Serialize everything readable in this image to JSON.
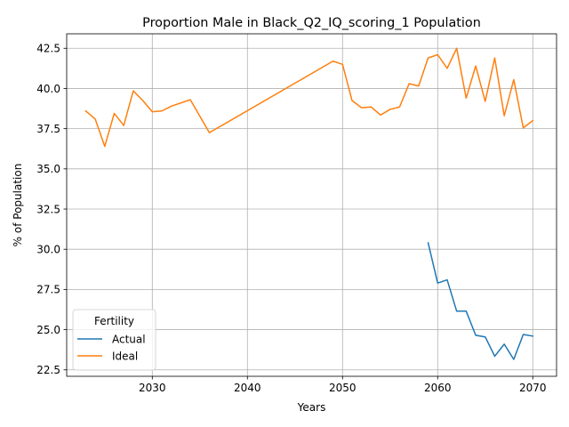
{
  "chart_data": {
    "type": "line",
    "title": "Proportion Male in Black_Q2_IQ_scoring_1 Population",
    "xlabel": "Years",
    "ylabel": "% of Population",
    "xlim": [
      2021,
      2072.5
    ],
    "ylim": [
      22.1,
      43.4
    ],
    "xticks": [
      2030,
      2040,
      2050,
      2060,
      2070
    ],
    "yticks": [
      22.5,
      25.0,
      27.5,
      30.0,
      32.5,
      35.0,
      37.5,
      40.0,
      42.5
    ],
    "grid": true,
    "legend": {
      "title": "Fertility",
      "placement": "lower-left"
    },
    "series": [
      {
        "name": "Actual",
        "color": "#1f77b4",
        "x": [
          2059,
          2060,
          2061,
          2062,
          2063,
          2064,
          2065,
          2066,
          2067,
          2068,
          2069,
          2070
        ],
        "y": [
          30.4,
          27.9,
          28.1,
          26.15,
          26.15,
          24.65,
          24.55,
          23.35,
          24.1,
          23.15,
          24.7,
          24.6
        ]
      },
      {
        "name": "Ideal",
        "color": "#ff7f0e",
        "x": [
          2023,
          2024,
          2025,
          2026,
          2027,
          2028,
          2029,
          2030,
          2031,
          2032,
          2034,
          2036,
          2049,
          2050,
          2051,
          2052,
          2053,
          2054,
          2055,
          2056,
          2057,
          2058,
          2059,
          2060,
          2061,
          2062,
          2063,
          2064,
          2065,
          2066,
          2067,
          2068,
          2069,
          2070
        ],
        "y": [
          38.6,
          38.1,
          36.4,
          38.45,
          37.7,
          39.85,
          39.25,
          38.55,
          38.6,
          38.9,
          39.3,
          37.25,
          41.7,
          41.5,
          39.25,
          38.8,
          38.85,
          38.35,
          38.7,
          38.85,
          40.3,
          40.15,
          41.9,
          42.1,
          41.25,
          42.5,
          39.4,
          41.4,
          39.2,
          41.9,
          38.3,
          40.55,
          37.55,
          38.0
        ]
      }
    ]
  }
}
